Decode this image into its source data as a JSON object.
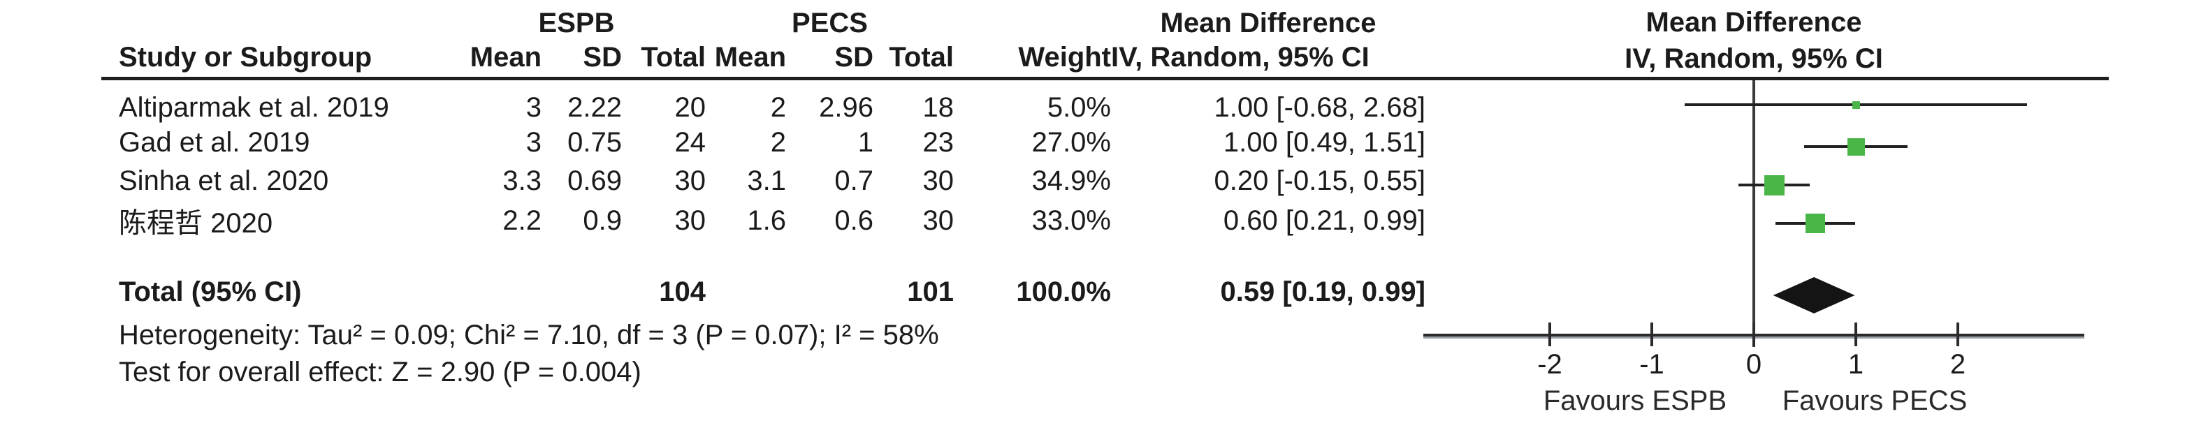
{
  "header": {
    "group_espb": "ESPB",
    "group_pecs": "PECS",
    "study": "Study or Subgroup",
    "mean": "Mean",
    "sd": "SD",
    "total": "Total",
    "weight": "Weight",
    "md_title": "Mean Difference",
    "md_sub": "IV, Random, 95% CI",
    "plot_title": "Mean Difference",
    "plot_sub": "IV, Random, 95% CI"
  },
  "rows": [
    {
      "study": "Altiparmak et al. 2019",
      "mean1": "3",
      "sd1": "2.22",
      "total1": "20",
      "mean2": "2",
      "sd2": "2.96",
      "total2": "18",
      "weight": "5.0%",
      "ci": "1.00 [-0.68, 2.68]"
    },
    {
      "study": "Gad et al. 2019",
      "mean1": "3",
      "sd1": "0.75",
      "total1": "24",
      "mean2": "2",
      "sd2": "1",
      "total2": "23",
      "weight": "27.0%",
      "ci": "1.00 [0.49, 1.51]"
    },
    {
      "study": "Sinha et al. 2020",
      "mean1": "3.3",
      "sd1": "0.69",
      "total1": "30",
      "mean2": "3.1",
      "sd2": "0.7",
      "total2": "30",
      "weight": "34.9%",
      "ci": "0.20 [-0.15, 0.55]"
    },
    {
      "study": "陈程哲 2020",
      "mean1": "2.2",
      "sd1": "0.9",
      "total1": "30",
      "mean2": "1.6",
      "sd2": "0.6",
      "total2": "30",
      "weight": "33.0%",
      "ci": "0.60 [0.21, 0.99]"
    }
  ],
  "total": {
    "label": "Total (95% CI)",
    "total1": "104",
    "total2": "101",
    "weight": "100.0%",
    "ci": "0.59 [0.19, 0.99]"
  },
  "footnotes": {
    "heterogeneity": "Heterogeneity: Tau² = 0.09; Chi² = 7.10, df = 3 (P = 0.07); I² = 58%",
    "overall_effect": "Test for overall effect: Z = 2.90 (P = 0.004)"
  },
  "axis": {
    "tick_labels": [
      "-2",
      "-1",
      "0",
      "1",
      "2"
    ],
    "favours_left": "Favours ESPB",
    "favours_right": "Favours PECS"
  },
  "colors": {
    "square_green": "#4bb648",
    "diamond_black": "#141414",
    "line_dark": "#212121"
  },
  "chart_data": {
    "type": "forest",
    "title": "Mean Difference",
    "effect_measure": "IV, Random, 95% CI",
    "group_labels": [
      "ESPB",
      "PECS"
    ],
    "studies": [
      {
        "name": "Altiparmak et al. 2019",
        "espb_mean": 3,
        "espb_sd": 2.22,
        "espb_n": 20,
        "pecs_mean": 2,
        "pecs_sd": 2.96,
        "pecs_n": 18,
        "weight_pct": 5.0,
        "md": 1.0,
        "ci_low": -0.68,
        "ci_high": 2.68
      },
      {
        "name": "Gad et al. 2019",
        "espb_mean": 3,
        "espb_sd": 0.75,
        "espb_n": 24,
        "pecs_mean": 2,
        "pecs_sd": 1,
        "pecs_n": 23,
        "weight_pct": 27.0,
        "md": 1.0,
        "ci_low": 0.49,
        "ci_high": 1.51
      },
      {
        "name": "Sinha et al. 2020",
        "espb_mean": 3.3,
        "espb_sd": 0.69,
        "espb_n": 30,
        "pecs_mean": 3.1,
        "pecs_sd": 0.7,
        "pecs_n": 30,
        "weight_pct": 34.9,
        "md": 0.2,
        "ci_low": -0.15,
        "ci_high": 0.55
      },
      {
        "name": "陈程哲 2020",
        "espb_mean": 2.2,
        "espb_sd": 0.9,
        "espb_n": 30,
        "pecs_mean": 1.6,
        "pecs_sd": 0.6,
        "pecs_n": 30,
        "weight_pct": 33.0,
        "md": 0.6,
        "ci_low": 0.21,
        "ci_high": 0.99
      }
    ],
    "total": {
      "name": "Total (95% CI)",
      "espb_n": 104,
      "pecs_n": 101,
      "weight_pct": 100.0,
      "md": 0.59,
      "ci_low": 0.19,
      "ci_high": 0.99
    },
    "heterogeneity": {
      "tau2": 0.09,
      "chi2": 7.1,
      "df": 3,
      "p": 0.07,
      "i2_pct": 58
    },
    "overall_effect": {
      "z": 2.9,
      "p": 0.004
    },
    "x_ticks": [
      -2,
      -1,
      0,
      1,
      2
    ],
    "x_axis_range": [
      -3.24,
      3.24
    ],
    "favours": [
      "Favours ESPB",
      "Favours PECS"
    ]
  }
}
